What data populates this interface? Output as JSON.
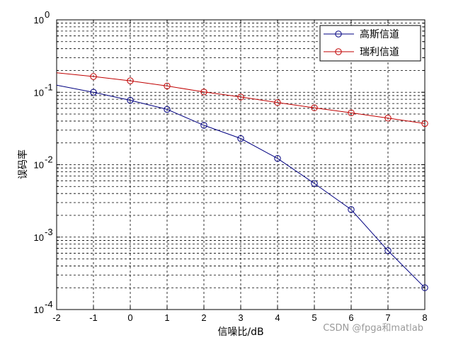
{
  "chart_data": {
    "type": "line",
    "title": "",
    "xlabel": "信噪比/dB",
    "ylabel": "误码率",
    "xlim": [
      -2,
      8
    ],
    "ylim": [
      0.0001,
      1
    ],
    "yscale": "log",
    "grid": true,
    "legend_position": "top-right",
    "x": [
      -1,
      0,
      1,
      2,
      3,
      4,
      5,
      6,
      7,
      8
    ],
    "line_start_x": -2,
    "series": [
      {
        "name": "高斯信道",
        "color": "#000080",
        "marker": "circle",
        "line_start_value": 0.125,
        "values": [
          0.1,
          0.0775,
          0.058,
          0.035,
          0.023,
          0.0122,
          0.0055,
          0.0024,
          0.00065,
          0.0002
        ]
      },
      {
        "name": "瑞利信道",
        "color": "#c00000",
        "marker": "circle",
        "line_start_value": 0.186,
        "values": [
          0.165,
          0.144,
          0.122,
          0.101,
          0.086,
          0.072,
          0.061,
          0.052,
          0.044,
          0.037
        ]
      }
    ],
    "x_ticks": [
      -2,
      -1,
      0,
      1,
      2,
      3,
      4,
      5,
      6,
      7,
      8
    ],
    "x_tick_labels": [
      "-2",
      "-1",
      "0",
      "1",
      "2",
      "3",
      "4",
      "5",
      "6",
      "7",
      "8"
    ],
    "y_ticks": [
      {
        "value": 1,
        "base": "10",
        "exp": "0"
      },
      {
        "value": 0.1,
        "base": "10",
        "exp": "-1"
      },
      {
        "value": 0.01,
        "base": "10",
        "exp": "-2"
      },
      {
        "value": 0.001,
        "base": "10",
        "exp": "-3"
      },
      {
        "value": 0.0001,
        "base": "10",
        "exp": "-4"
      }
    ]
  },
  "watermark": "CSDN @fpga和matlab"
}
